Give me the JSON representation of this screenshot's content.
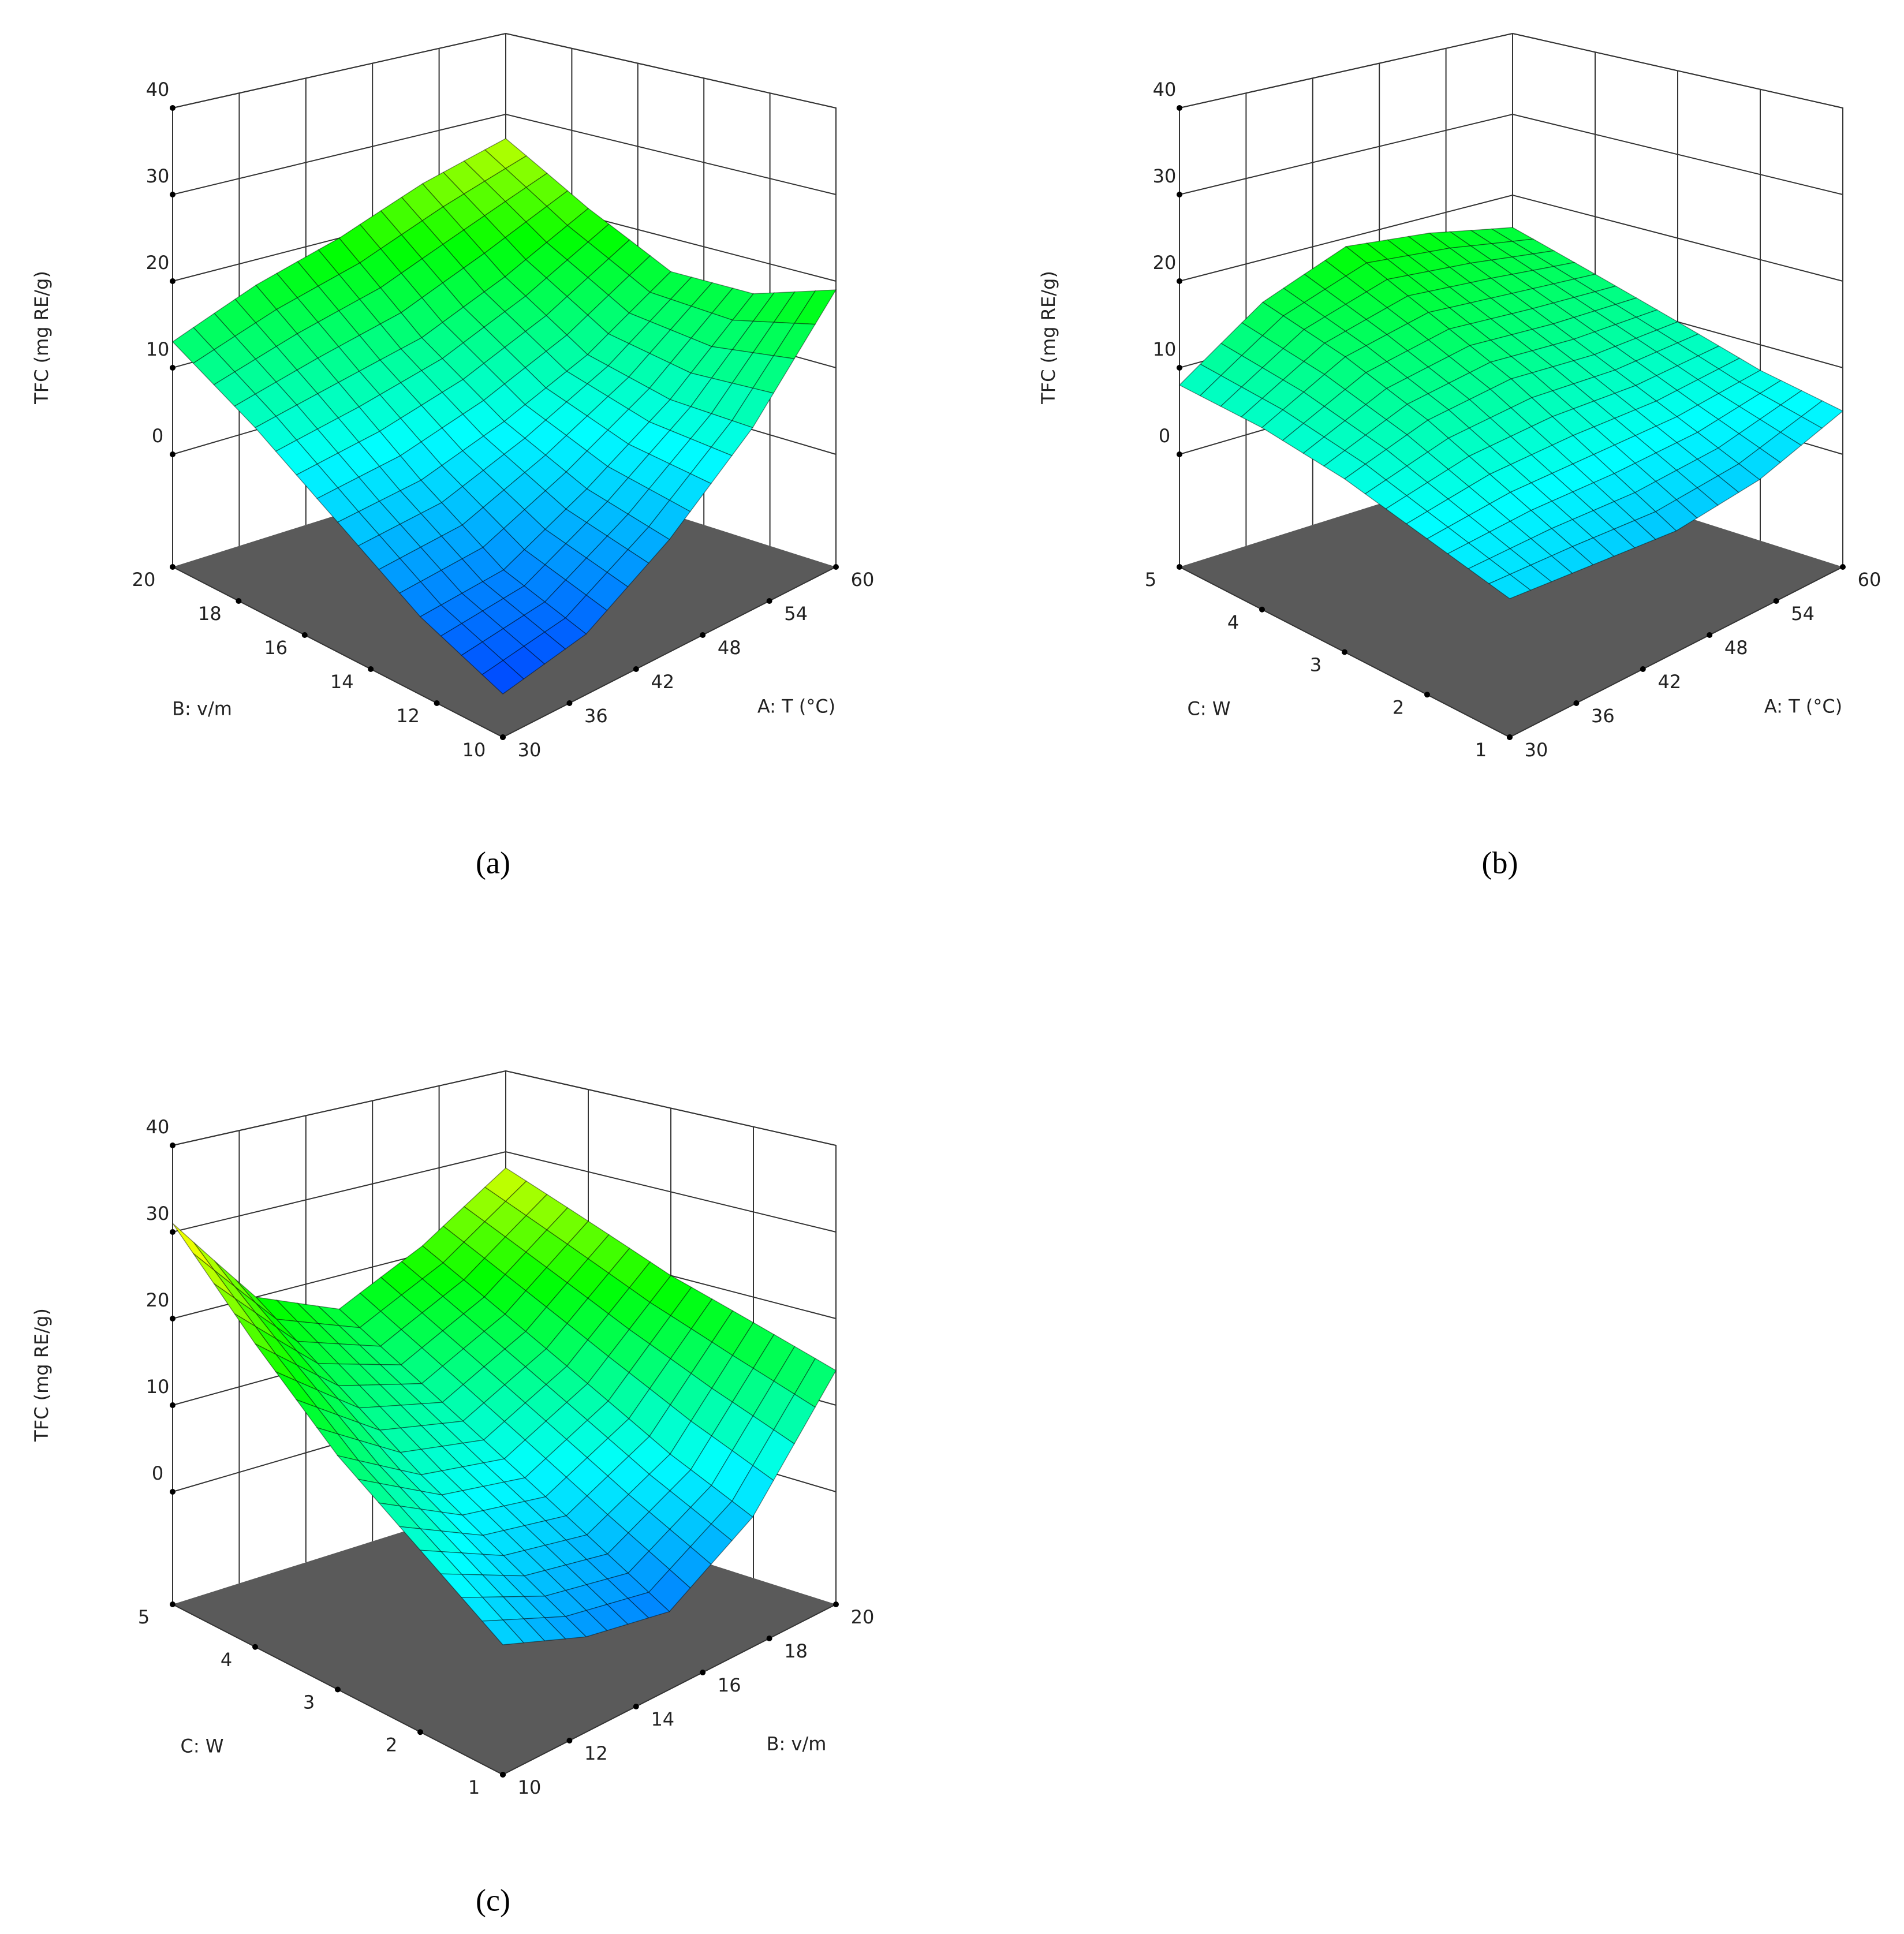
{
  "chart_data": [
    {
      "type": "surface",
      "panel_label": "(a)",
      "x_label": "A: T (°C)",
      "y_label": "B: v/m",
      "z_label": "TFC (mg RE/g)",
      "x": [
        30,
        37.5,
        45,
        52.5,
        60
      ],
      "y": [
        10,
        12.5,
        15,
        17.5,
        20
      ],
      "z": [
        [
          -8,
          -6,
          0,
          8,
          19
        ],
        [
          -4,
          -3,
          2,
          8,
          16
        ],
        [
          2,
          3,
          6,
          10,
          16
        ],
        [
          8,
          10,
          12,
          16,
          21
        ],
        [
          13,
          17,
          20,
          24,
          27
        ]
      ],
      "xlim": [
        30,
        60
      ],
      "xticks": [
        30,
        36,
        42,
        48,
        54,
        60
      ],
      "ylim": [
        10,
        20
      ],
      "yticks": [
        10,
        12,
        14,
        16,
        18,
        20
      ],
      "zlim": [
        -13,
        40
      ],
      "zticks": [
        0,
        10,
        20,
        30,
        40
      ],
      "floor_color": "#5a5a5a",
      "colormap": [
        [
          0,
          "#0000ff"
        ],
        [
          0.35,
          "#00ffff"
        ],
        [
          0.6,
          "#00ff00"
        ],
        [
          0.8,
          "#ffff00"
        ],
        [
          1,
          "#ff0000"
        ]
      ]
    },
    {
      "type": "surface",
      "panel_label": "(b)",
      "x_label": "A: T (°C)",
      "y_label": "C: W",
      "z_label": "TFC (mg RE/g)",
      "x": [
        30,
        37.5,
        45,
        52.5,
        60
      ],
      "y": [
        1,
        2,
        3,
        4,
        5
      ],
      "z": [
        [
          3,
          2,
          1,
          2,
          5
        ],
        [
          5,
          6,
          6,
          6,
          7
        ],
        [
          7,
          10,
          11,
          10,
          10
        ],
        [
          8,
          13,
          15,
          14,
          13
        ],
        [
          8,
          15,
          19,
          18,
          16
        ]
      ],
      "xlim": [
        30,
        60
      ],
      "xticks": [
        30,
        36,
        42,
        48,
        54,
        60
      ],
      "ylim": [
        1,
        5
      ],
      "yticks": [
        1,
        2,
        3,
        4,
        5
      ],
      "zlim": [
        -13,
        40
      ],
      "zticks": [
        0,
        10,
        20,
        30,
        40
      ],
      "floor_color": "#5a5a5a",
      "colormap": [
        [
          0,
          "#0000ff"
        ],
        [
          0.35,
          "#00ffff"
        ],
        [
          0.6,
          "#00ff00"
        ],
        [
          0.8,
          "#ffff00"
        ],
        [
          1,
          "#ff0000"
        ]
      ]
    },
    {
      "type": "surface",
      "panel_label": "(c)",
      "x_label": "B: v/m",
      "y_label": "C: W",
      "z_label": "TFC (mg RE/g)",
      "x": [
        10,
        12.5,
        15,
        17.5,
        20
      ],
      "y": [
        1,
        2,
        3,
        4,
        5
      ],
      "z": [
        [
          2,
          -2,
          -4,
          2,
          14
        ],
        [
          8,
          3,
          1,
          6,
          17
        ],
        [
          14,
          8,
          6,
          11,
          20
        ],
        [
          22,
          14,
          11,
          16,
          24
        ],
        [
          31,
          20,
          16,
          21,
          28
        ]
      ],
      "xlim": [
        10,
        20
      ],
      "xticks": [
        10,
        12,
        14,
        16,
        18,
        20
      ],
      "ylim": [
        1,
        5
      ],
      "yticks": [
        1,
        2,
        3,
        4,
        5
      ],
      "zlim": [
        -13,
        40
      ],
      "zticks": [
        0,
        10,
        20,
        30,
        40
      ],
      "floor_color": "#5a5a5a",
      "colormap": [
        [
          0,
          "#0000ff"
        ],
        [
          0.35,
          "#00ffff"
        ],
        [
          0.6,
          "#00ff00"
        ],
        [
          0.8,
          "#ffff00"
        ],
        [
          1,
          "#ff0000"
        ]
      ]
    }
  ]
}
